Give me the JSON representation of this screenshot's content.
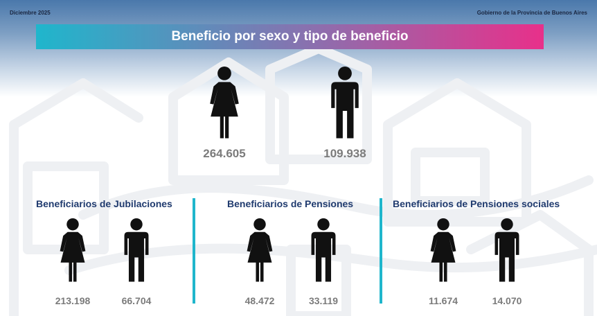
{
  "header": {
    "date": "Diciembre 2025",
    "org": "Gobierno de la Provincia de Buenos Aires"
  },
  "title": "Beneficio por sexo y tipo de beneficio",
  "colors": {
    "accent_start": "#1fb6cc",
    "accent_end": "#e8308a",
    "heading": "#1f3a6e",
    "numbers": "#7b7b7b"
  },
  "totals": {
    "women": "264.605",
    "men": "109.938"
  },
  "sections": [
    {
      "title": "Beneficiarios de Jubilaciones",
      "women": "213.198",
      "men": "66.704"
    },
    {
      "title": "Beneficiarios de Pensiones",
      "women": "48.472",
      "men": "33.119"
    },
    {
      "title": "Beneficiarios de Pensiones sociales",
      "women": "11.674",
      "men": "14.070"
    }
  ]
}
